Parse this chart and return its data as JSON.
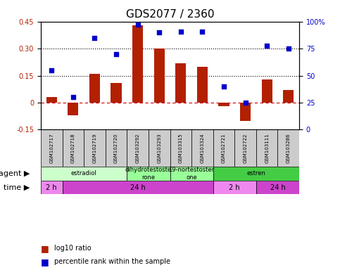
{
  "title": "GDS2077 / 2360",
  "samples": [
    "GSM102717",
    "GSM102718",
    "GSM102719",
    "GSM102720",
    "GSM103292",
    "GSM103293",
    "GSM103315",
    "GSM103324",
    "GSM102721",
    "GSM102722",
    "GSM103111",
    "GSM103286"
  ],
  "log10_ratio": [
    0.03,
    -0.07,
    0.16,
    0.11,
    0.43,
    0.3,
    0.22,
    0.2,
    -0.02,
    -0.1,
    0.13,
    0.07
  ],
  "percentile_rank": [
    55,
    30,
    85,
    70,
    97,
    90,
    91,
    91,
    40,
    25,
    78,
    75
  ],
  "ylim_left": [
    -0.15,
    0.45
  ],
  "ylim_right": [
    0,
    100
  ],
  "yticks_left": [
    -0.15,
    0,
    0.15,
    0.3,
    0.45
  ],
  "yticks_right": [
    0,
    25,
    50,
    75,
    100
  ],
  "dotted_hlines": [
    0.15,
    0.3
  ],
  "bar_color": "#B22000",
  "scatter_color": "#0000CC",
  "zero_line_color": "#CC0000",
  "agent_groups": [
    {
      "label": "estradiol",
      "start": 0,
      "end": 4,
      "color": "#CCFFCC"
    },
    {
      "label": "dihydrotestoste\nrone",
      "start": 4,
      "end": 6,
      "color": "#99FF99"
    },
    {
      "label": "19-nortestoster\none",
      "start": 6,
      "end": 8,
      "color": "#99FF99"
    },
    {
      "label": "estren",
      "start": 8,
      "end": 12,
      "color": "#44CC44"
    }
  ],
  "time_groups": [
    {
      "label": "2 h",
      "start": 0,
      "end": 1,
      "color": "#EE88EE"
    },
    {
      "label": "24 h",
      "start": 1,
      "end": 8,
      "color": "#CC44CC"
    },
    {
      "label": "2 h",
      "start": 8,
      "end": 10,
      "color": "#EE88EE"
    },
    {
      "label": "24 h",
      "start": 10,
      "end": 12,
      "color": "#CC44CC"
    }
  ],
  "legend_bar_label": "log10 ratio",
  "legend_scatter_label": "percentile rank within the sample",
  "xlabel_agent": "agent",
  "xlabel_time": "time",
  "title_fontsize": 11,
  "tick_fontsize": 7,
  "label_fontsize": 8
}
